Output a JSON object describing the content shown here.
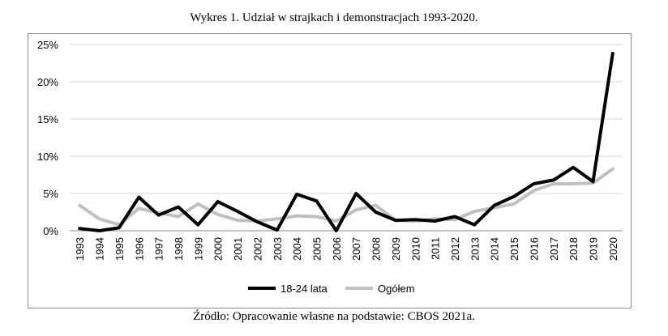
{
  "caption": "Wykres 1. Udział w strajkach i demonstracjach 1993-2020.",
  "source": "Źródło: Opracowanie własne na podstawie: CBOS 2021a.",
  "chart_data": {
    "type": "line",
    "title": "",
    "xlabel": "",
    "ylabel": "",
    "x": [
      "1993",
      "1994",
      "1995",
      "1996",
      "1997",
      "1998",
      "1999",
      "2000",
      "2001",
      "2002",
      "2003",
      "2004",
      "2005",
      "2006",
      "2007",
      "2008",
      "2009",
      "2010",
      "2011",
      "2012",
      "2013",
      "2014",
      "2015",
      "2016",
      "2017",
      "2018",
      "2019",
      "2020"
    ],
    "ylim": [
      0,
      25
    ],
    "yticks": [
      0,
      5,
      10,
      15,
      20,
      25
    ],
    "ytick_labels": [
      "0%",
      "5%",
      "10%",
      "15%",
      "20%",
      "25%"
    ],
    "grid": "horizontal",
    "legend_position": "bottom",
    "series": [
      {
        "name": "18-24 lata",
        "color": "#000000",
        "values": [
          0.3,
          0.0,
          0.4,
          4.5,
          2.1,
          3.2,
          0.8,
          3.9,
          2.6,
          1.2,
          0.1,
          4.9,
          4.0,
          0.0,
          5.0,
          2.5,
          1.4,
          1.5,
          1.3,
          1.9,
          0.8,
          3.4,
          4.6,
          6.3,
          6.8,
          8.5,
          6.6,
          23.8
        ]
      },
      {
        "name": "Ogółem",
        "color": "#c0c0c0",
        "values": [
          3.4,
          1.6,
          0.8,
          3.0,
          2.4,
          1.9,
          3.6,
          2.2,
          1.4,
          1.3,
          1.6,
          2.0,
          1.9,
          1.3,
          2.8,
          3.4,
          1.4,
          1.3,
          1.6,
          1.5,
          2.6,
          3.1,
          3.6,
          5.4,
          6.3,
          6.3,
          6.4,
          8.3
        ]
      }
    ]
  }
}
